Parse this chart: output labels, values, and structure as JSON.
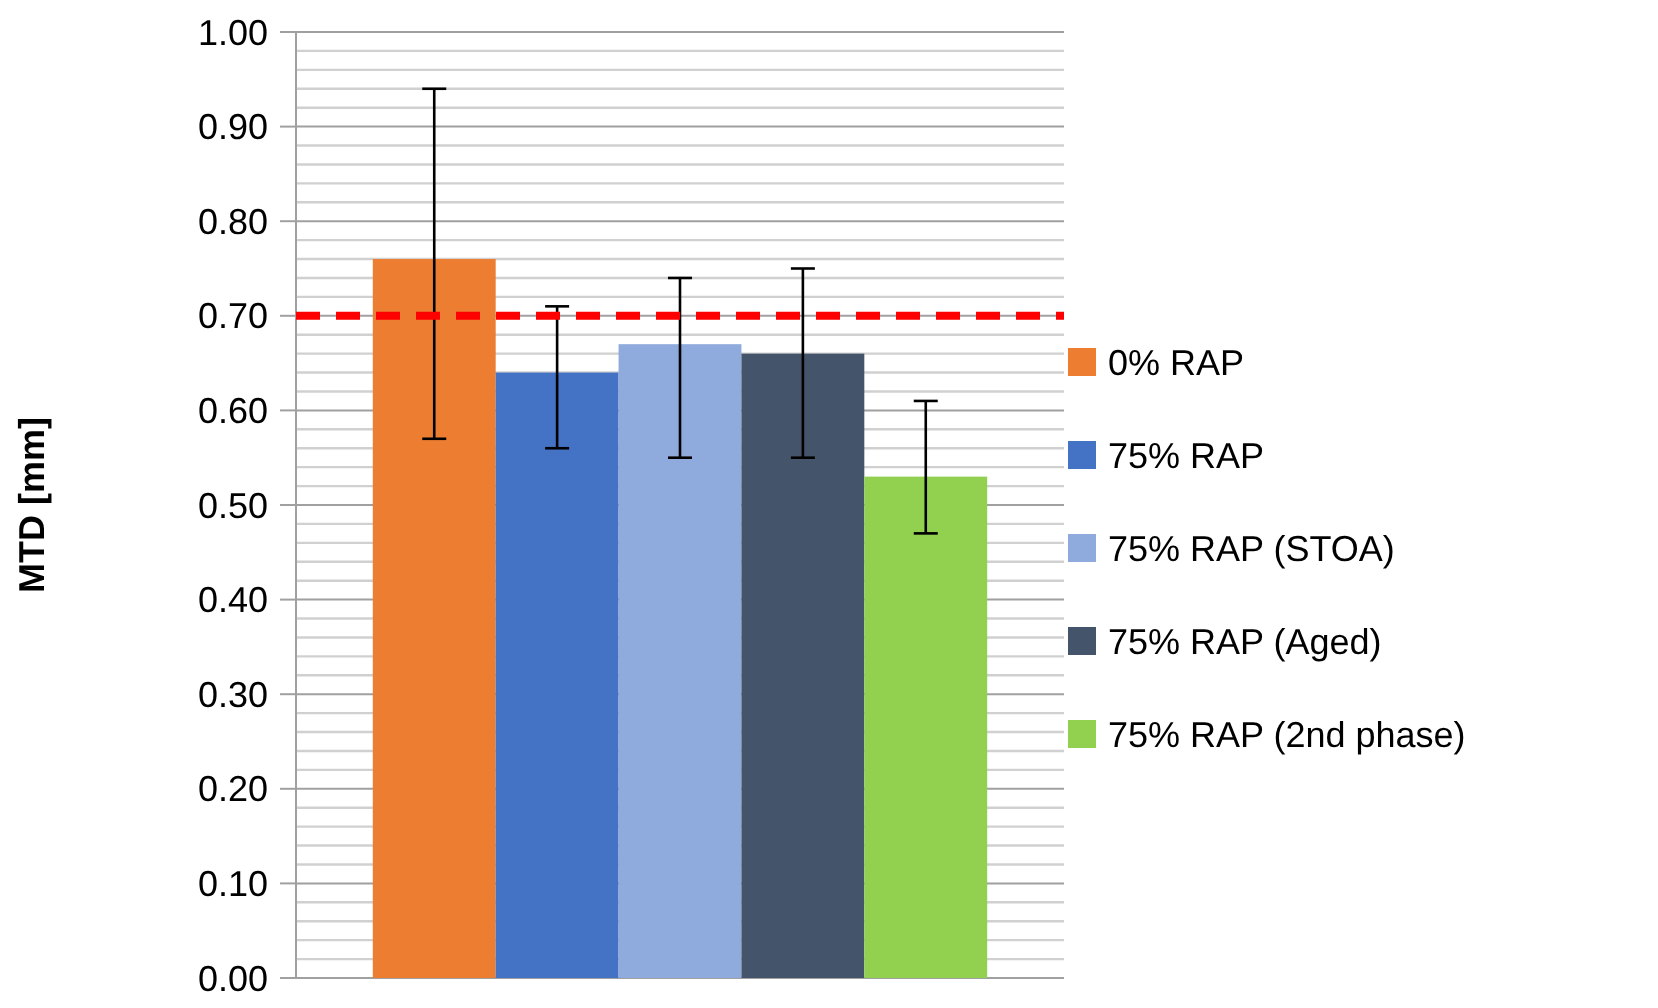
{
  "chart_data": {
    "type": "bar",
    "ylabel": "MTD [mm]",
    "categories": [
      null
    ],
    "series": [
      {
        "name": "0% RAP",
        "color": "#ed7d31",
        "values": [
          0.76
        ],
        "errors": [
          [
            0.57,
            0.94
          ]
        ]
      },
      {
        "name": "75% RAP",
        "color": "#4472c4",
        "values": [
          0.64
        ],
        "errors": [
          [
            0.56,
            0.71
          ]
        ]
      },
      {
        "name": "75% RAP (STOA)",
        "color": "#8faadc",
        "values": [
          0.67
        ],
        "errors": [
          [
            0.55,
            0.74
          ]
        ]
      },
      {
        "name": "75% RAP (Aged)",
        "color": "#44546a",
        "values": [
          0.66
        ],
        "errors": [
          [
            0.55,
            0.75
          ]
        ]
      },
      {
        "name": "75% RAP (2nd phase)",
        "color": "#92d050",
        "values": [
          0.53
        ],
        "errors": [
          [
            0.47,
            0.61
          ]
        ]
      }
    ],
    "ylim": [
      0,
      1
    ],
    "yticks": [
      {
        "value": 0,
        "label": "0.00"
      },
      {
        "value": 0.02,
        "label": null
      },
      {
        "value": 0.04,
        "label": null
      },
      {
        "value": 0.06,
        "label": null
      },
      {
        "value": 0.08,
        "label": null
      },
      {
        "value": 0.1,
        "label": "0.10"
      },
      {
        "value": 0.12,
        "label": null
      },
      {
        "value": 0.14,
        "label": null
      },
      {
        "value": 0.16,
        "label": null
      },
      {
        "value": 0.18,
        "label": null
      },
      {
        "value": 0.2,
        "label": "0.20"
      },
      {
        "value": 0.22,
        "label": null
      },
      {
        "value": 0.24,
        "label": null
      },
      {
        "value": 0.26,
        "label": null
      },
      {
        "value": 0.28,
        "label": null
      },
      {
        "value": 0.3,
        "label": "0.30"
      },
      {
        "value": 0.32,
        "label": null
      },
      {
        "value": 0.34,
        "label": null
      },
      {
        "value": 0.36,
        "label": null
      },
      {
        "value": 0.38,
        "label": null
      },
      {
        "value": 0.4,
        "label": "0.40"
      },
      {
        "value": 0.42,
        "label": null
      },
      {
        "value": 0.44,
        "label": null
      },
      {
        "value": 0.46,
        "label": null
      },
      {
        "value": 0.48,
        "label": null
      },
      {
        "value": 0.5,
        "label": "0.50"
      },
      {
        "value": 0.52,
        "label": null
      },
      {
        "value": 0.54,
        "label": null
      },
      {
        "value": 0.56,
        "label": null
      },
      {
        "value": 0.58,
        "label": null
      },
      {
        "value": 0.6,
        "label": "0.60"
      },
      {
        "value": 0.62,
        "label": null
      },
      {
        "value": 0.64,
        "label": null
      },
      {
        "value": 0.66,
        "label": null
      },
      {
        "value": 0.68,
        "label": null
      },
      {
        "value": 0.7,
        "label": "0.70"
      },
      {
        "value": 0.72,
        "label": null
      },
      {
        "value": 0.74,
        "label": null
      },
      {
        "value": 0.76,
        "label": null
      },
      {
        "value": 0.78,
        "label": null
      },
      {
        "value": 0.8,
        "label": "0.80"
      },
      {
        "value": 0.82,
        "label": null
      },
      {
        "value": 0.84,
        "label": null
      },
      {
        "value": 0.86,
        "label": null
      },
      {
        "value": 0.88,
        "label": null
      },
      {
        "value": 0.9,
        "label": "0.90"
      },
      {
        "value": 0.92,
        "label": null
      },
      {
        "value": 0.94,
        "label": null
      },
      {
        "value": 0.96,
        "label": null
      },
      {
        "value": 0.98,
        "label": null
      },
      {
        "value": 1,
        "label": "1.00"
      }
    ],
    "grid": true,
    "legend": "right",
    "ref_lines": [
      {
        "axis": "y",
        "value": 0.7,
        "color": "#ff0000",
        "line_style": "dashed"
      }
    ]
  }
}
